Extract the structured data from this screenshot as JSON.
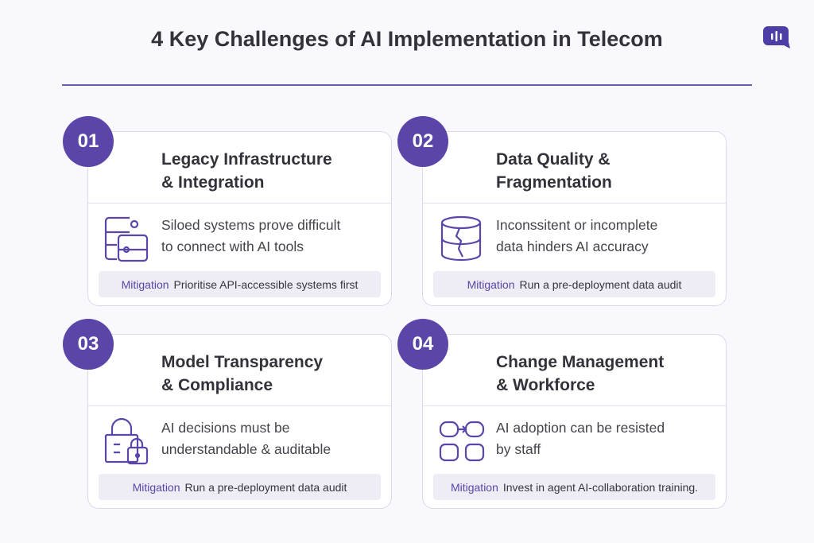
{
  "title": "4 Key Challenges of AI Implementation in Telecom",
  "logo": "chat-bubble-sound-icon",
  "accent_color": "#5b45a8",
  "cards": [
    {
      "number": "01",
      "title_line1": "Legacy Infrastructure",
      "title_line2": "& Integration",
      "icon": "database-connection-icon",
      "desc_line1": "Siloed systems prove difficult",
      "desc_line2": "to connect with AI tools",
      "mitigation_label": "Mitigation",
      "mitigation_text": "Prioritise API-accessible systems first"
    },
    {
      "number": "02",
      "title_line1": "Data Quality &",
      "title_line2": "Fragmentation",
      "icon": "cracked-database-icon",
      "desc_line1": "Inconssitent or incomplete",
      "desc_line2": "data hinders AI accuracy",
      "mitigation_label": "Mitigation",
      "mitigation_text": "Run a pre-deployment  data audit"
    },
    {
      "number": "03",
      "title_line1": "Model Transparency",
      "title_line2": "& Compliance",
      "icon": "lock-icon",
      "desc_line1": "AI decisions must be",
      "desc_line2": "understandable & auditable",
      "mitigation_label": "Mitigation",
      "mitigation_text": "Run a pre-deployment data audit"
    },
    {
      "number": "04",
      "title_line1": "Change Management",
      "title_line2": "& Workforce",
      "icon": "workflow-icon",
      "desc_line1": "AI adoption can be resisted",
      "desc_line2": "by staff",
      "mitigation_label": "Mitigation",
      "mitigation_text": "Invest in agent AI-collaboration training."
    }
  ]
}
